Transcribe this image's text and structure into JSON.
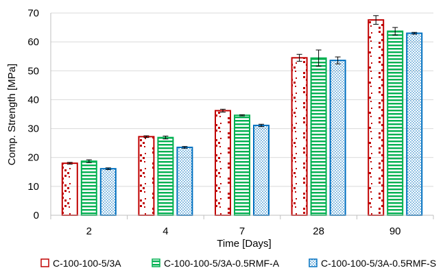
{
  "chart_data": {
    "type": "bar",
    "xlabel": "Time [Days]",
    "ylabel": "Comp. Strength [MPa]",
    "ylim": [
      0,
      70
    ],
    "yticks": [
      0,
      10,
      20,
      30,
      40,
      50,
      60,
      70
    ],
    "grid": true,
    "legend_position": "bottom",
    "categories": [
      "2",
      "4",
      "7",
      "28",
      "90"
    ],
    "series": [
      {
        "name": "C-100-100-5/3A",
        "values": [
          18.0,
          27.2,
          36.2,
          54.5,
          67.6
        ],
        "errors": [
          0.3,
          0.3,
          0.5,
          1.2,
          1.5
        ],
        "color": "#c00000",
        "pattern": "diag-dots"
      },
      {
        "name": "C-100-100-5/3A-0.5RMF-A",
        "values": [
          18.7,
          26.9,
          34.6,
          54.4,
          63.7
        ],
        "errors": [
          0.5,
          0.5,
          0.2,
          2.8,
          1.3
        ],
        "color": "#00b050",
        "pattern": "horizontal-lines"
      },
      {
        "name": "C-100-100-5/3A-0.5RMF-S",
        "values": [
          16.1,
          23.5,
          31.1,
          53.6,
          63.0
        ],
        "errors": [
          0.3,
          0.3,
          0.4,
          1.2,
          0.3
        ],
        "color": "#0070c0",
        "pattern": "dots"
      }
    ]
  }
}
